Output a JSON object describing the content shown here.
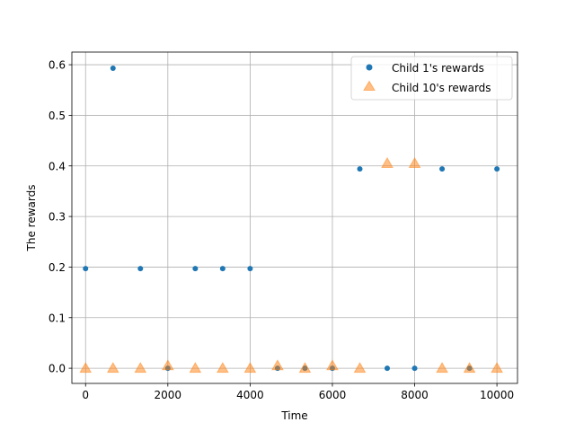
{
  "chart_data": {
    "type": "scatter",
    "xlabel": "Time",
    "ylabel": "The rewards",
    "xlim": [
      -333,
      10500
    ],
    "ylim": [
      -0.03,
      0.625
    ],
    "xticks": [
      0,
      2000,
      4000,
      6000,
      8000,
      10000
    ],
    "xtick_labels": [
      "0",
      "2000",
      "4000",
      "6000",
      "8000",
      "10000"
    ],
    "yticks": [
      0.0,
      0.1,
      0.2,
      0.3,
      0.4,
      0.5,
      0.6
    ],
    "ytick_labels": [
      "0.0",
      "0.1",
      "0.2",
      "0.3",
      "0.4",
      "0.5",
      "0.6"
    ],
    "grid": true,
    "legend_position": "top-right",
    "series": [
      {
        "name": "Child 1's rewards",
        "marker": "circle",
        "color": "#1f77b4",
        "points": [
          [
            0,
            0.197
          ],
          [
            667,
            0.593
          ],
          [
            1333,
            0.197
          ],
          [
            2000,
            0.0
          ],
          [
            2667,
            0.197
          ],
          [
            3333,
            0.197
          ],
          [
            4000,
            0.197
          ],
          [
            4667,
            0.0
          ],
          [
            5333,
            0.0
          ],
          [
            6000,
            0.0
          ],
          [
            6667,
            0.394
          ],
          [
            7333,
            0.0
          ],
          [
            8000,
            0.0
          ],
          [
            8667,
            0.394
          ],
          [
            9333,
            0.0
          ],
          [
            10000,
            0.394
          ]
        ]
      },
      {
        "name": "Child 10's rewards",
        "marker": "triangle",
        "color": "#ff7f0e",
        "points": [
          [
            0,
            0.0
          ],
          [
            667,
            0.0
          ],
          [
            1333,
            0.0
          ],
          [
            2000,
            0.005
          ],
          [
            2667,
            0.0
          ],
          [
            3333,
            0.0
          ],
          [
            4000,
            0.0
          ],
          [
            4667,
            0.005
          ],
          [
            5333,
            0.0
          ],
          [
            6000,
            0.005
          ],
          [
            6667,
            0.0
          ],
          [
            7333,
            0.405
          ],
          [
            8000,
            0.405
          ],
          [
            8667,
            0.0
          ],
          [
            9333,
            0.0
          ],
          [
            10000,
            0.0
          ]
        ]
      }
    ]
  }
}
